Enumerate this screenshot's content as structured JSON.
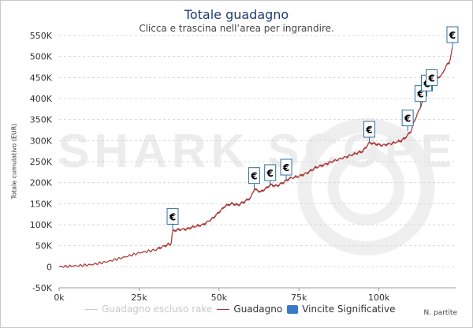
{
  "header": {
    "title": "Totale guadagno",
    "subtitle": "Clicca e trascina nell’area per ingrandire."
  },
  "axes": {
    "ylabel": "Totale cumulativo (EUR)",
    "xlabel": "N. partite"
  },
  "watermark": "SHARK SCOPE",
  "legend": {
    "items": [
      {
        "label": "Guadagno escluso rake",
        "color": "#cccccc",
        "kind": "line",
        "enabled": false
      },
      {
        "label": "Guadagno",
        "color": "#a83232",
        "kind": "line",
        "enabled": true
      },
      {
        "label": "Vincite Significative",
        "color": "#3a78c8",
        "kind": "box",
        "enabled": true
      }
    ]
  },
  "marker_symbol": "€",
  "colors": {
    "line": "#a83232",
    "marker_border": "#2f6f9f",
    "grid": "#d8d8d8",
    "title": "#1f3d6b"
  },
  "chart_data": {
    "type": "line",
    "title": "Totale guadagno",
    "xlabel": "N. partite",
    "ylabel": "Totale cumulativo (EUR)",
    "xlim": [
      0,
      124000
    ],
    "ylim": [
      -50000,
      550000
    ],
    "xticks": [
      0,
      25000,
      50000,
      75000,
      100000
    ],
    "xtick_labels": [
      "0k",
      "25k",
      "50k",
      "75k",
      "100k"
    ],
    "yticks": [
      -50000,
      0,
      50000,
      100000,
      150000,
      200000,
      250000,
      300000,
      350000,
      400000,
      450000,
      500000,
      550000
    ],
    "ytick_labels": [
      "-50K",
      "0",
      "50K",
      "100K",
      "150K",
      "200K",
      "250K",
      "300K",
      "350K",
      "400K",
      "450K",
      "500K",
      "550K"
    ],
    "grid": true,
    "series": [
      {
        "name": "Guadagno",
        "x": [
          0,
          5000,
          10000,
          15000,
          20000,
          25000,
          30000,
          33000,
          35000,
          35500,
          37000,
          40000,
          42000,
          45000,
          48000,
          50000,
          52000,
          54000,
          56000,
          58000,
          60000,
          61000,
          63000,
          65000,
          66000,
          68000,
          70000,
          72000,
          75000,
          78000,
          80000,
          83000,
          86000,
          90000,
          93000,
          95000,
          96000,
          97000,
          99000,
          101000,
          104000,
          107000,
          108000,
          110000,
          111000,
          113000,
          114000,
          115000,
          116000,
          118000,
          120000,
          121000,
          122000,
          123000
        ],
        "y": [
          0,
          2000,
          5000,
          12000,
          22000,
          33000,
          40000,
          50000,
          55000,
          85000,
          88000,
          90000,
          95000,
          100000,
          115000,
          130000,
          145000,
          150000,
          147000,
          155000,
          165000,
          185000,
          178000,
          188000,
          195000,
          192000,
          200000,
          210000,
          215000,
          225000,
          235000,
          243000,
          252000,
          262000,
          270000,
          275000,
          285000,
          295000,
          292000,
          289000,
          293000,
          300000,
          305000,
          322000,
          345000,
          380000,
          400000,
          420000,
          432000,
          445000,
          460000,
          478000,
          485000,
          520000
        ]
      },
      {
        "name": "Vincite Significative",
        "type": "scatter",
        "x": [
          35500,
          61000,
          66000,
          71000,
          97000,
          109000,
          113000,
          115000,
          116500,
          123000
        ],
        "y": [
          88000,
          185000,
          192000,
          205000,
          295000,
          322000,
          380000,
          405000,
          418000,
          520000
        ]
      }
    ]
  }
}
